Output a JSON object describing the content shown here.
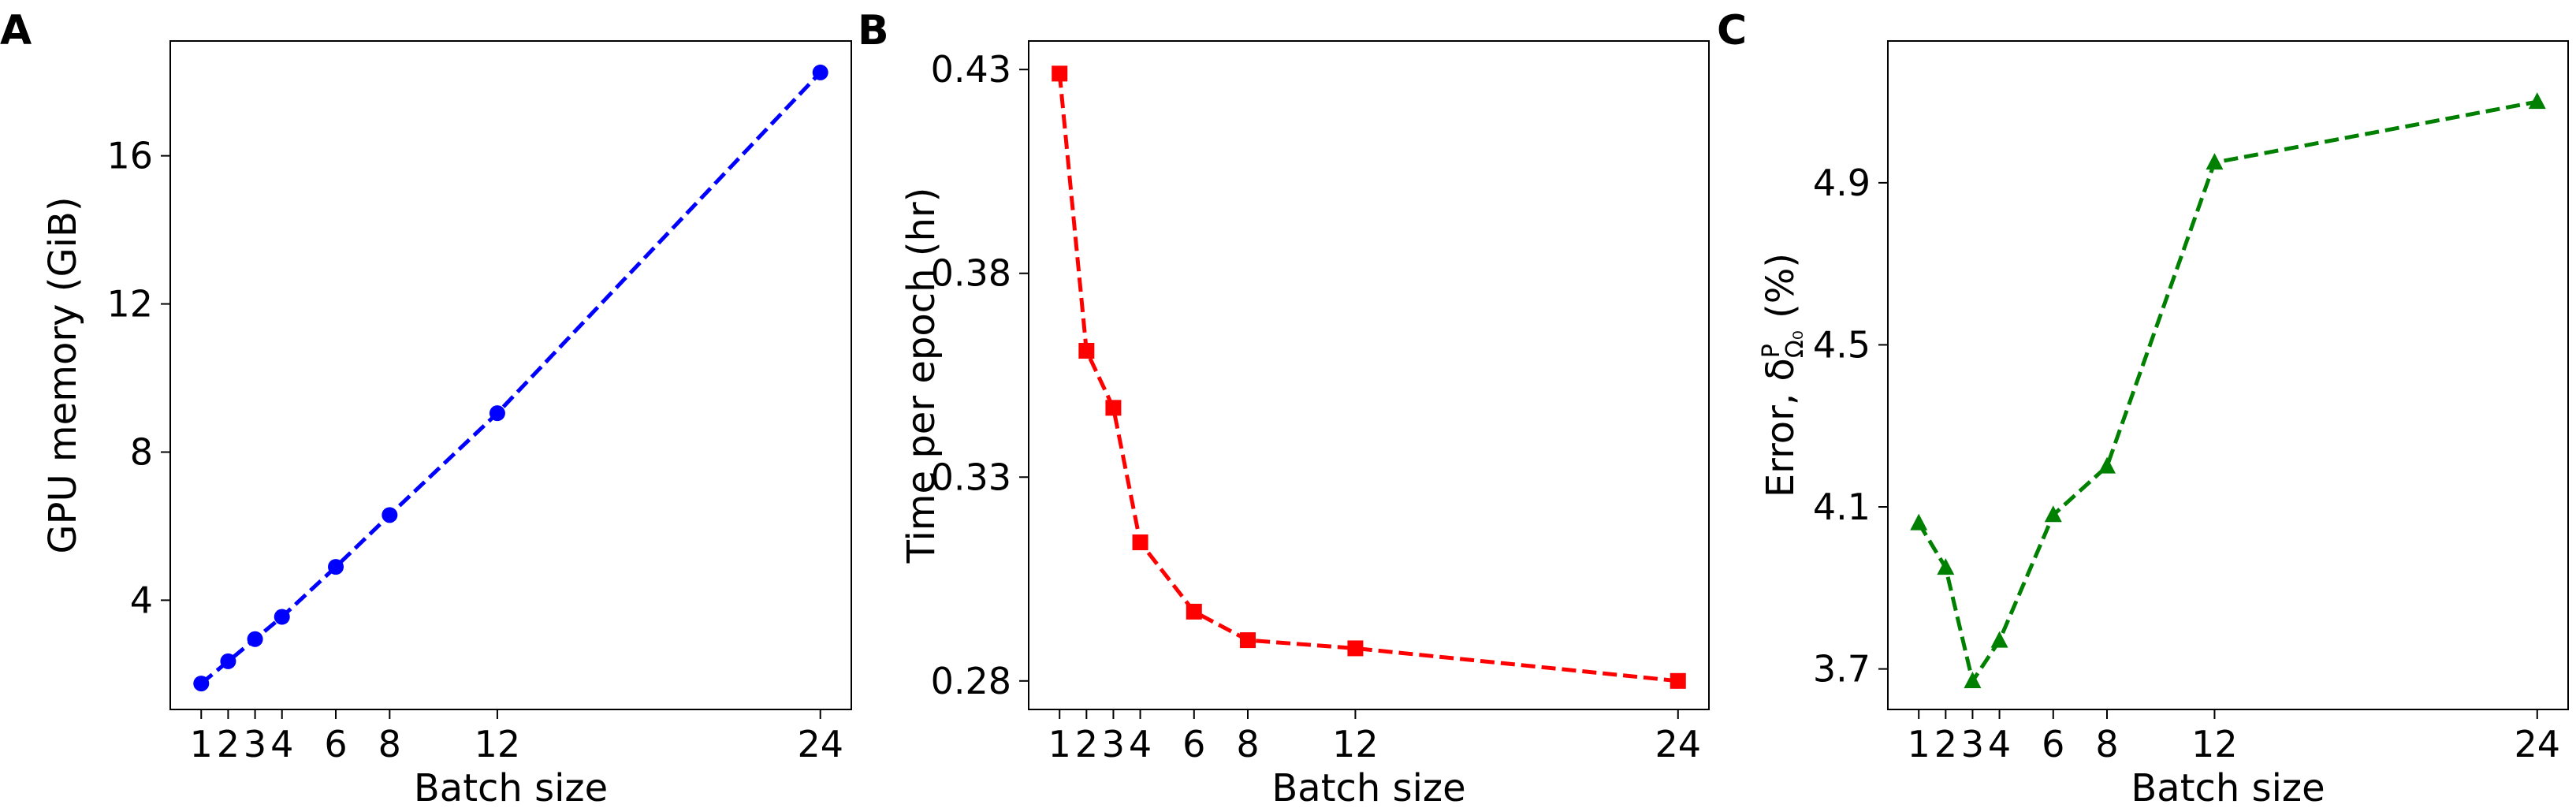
{
  "chart_data": [
    {
      "panel": "A",
      "type": "line",
      "xlabel": "Batch size",
      "ylabel": "GPU memory (GiB)",
      "color": "#0000ff",
      "marker": "circle",
      "line_style": "dashed",
      "grid": false,
      "xticks": [
        1,
        2,
        3,
        4,
        6,
        8,
        12,
        24
      ],
      "yticks": [
        4,
        8,
        12,
        16
      ],
      "xlim": [
        -0.15,
        25.15
      ],
      "ylim": [
        1.05,
        19.1
      ],
      "x": [
        1,
        2,
        3,
        4,
        6,
        8,
        12,
        24
      ],
      "y": [
        1.75,
        2.35,
        2.95,
        3.55,
        4.9,
        6.3,
        9.05,
        18.25
      ]
    },
    {
      "panel": "B",
      "type": "line",
      "xlabel": "Batch size",
      "ylabel": "Time per epoch (hr)",
      "color": "#ff0000",
      "marker": "square",
      "line_style": "dashed",
      "grid": false,
      "xticks": [
        1,
        2,
        3,
        4,
        6,
        8,
        12,
        24
      ],
      "yticks": [
        0.28,
        0.33,
        0.38,
        0.43
      ],
      "xlim": [
        -0.15,
        25.15
      ],
      "ylim": [
        0.273,
        0.437
      ],
      "x": [
        1,
        2,
        3,
        4,
        6,
        8,
        12,
        24
      ],
      "y": [
        0.429,
        0.361,
        0.347,
        0.314,
        0.297,
        0.29,
        0.288,
        0.28
      ]
    },
    {
      "panel": "C",
      "type": "line",
      "xlabel": "Batch size",
      "ylabel": "Error, δ",
      "ylabel_sup": "P",
      "ylabel_sub": "Ω₀",
      "ylabel_unit": "(%)",
      "color": "#008000",
      "marker": "triangle",
      "line_style": "dashed",
      "grid": false,
      "xticks": [
        1,
        2,
        3,
        4,
        6,
        8,
        12,
        24
      ],
      "yticks": [
        3.7,
        4.1,
        4.5,
        4.9
      ],
      "xlim": [
        -0.15,
        25.15
      ],
      "ylim": [
        3.6,
        5.25
      ],
      "x": [
        1,
        2,
        3,
        4,
        6,
        8,
        12,
        24
      ],
      "y": [
        4.06,
        3.95,
        3.67,
        3.77,
        4.08,
        4.2,
        4.95,
        5.1
      ]
    }
  ]
}
